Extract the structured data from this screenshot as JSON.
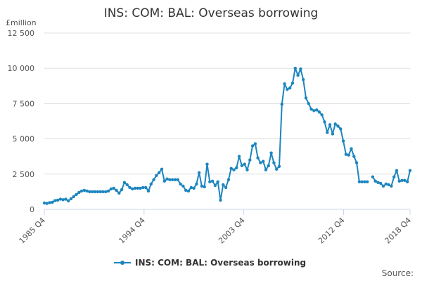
{
  "colors": {
    "series": "#1c85bf",
    "grid": "#e0e0e0",
    "text": "#333333"
  },
  "chart_data": {
    "type": "line",
    "title": "INS: COM: BAL: Overseas borrowing",
    "y_unit": "£million",
    "ylabel": "",
    "xlabel": "",
    "ylim": [
      0,
      12500
    ],
    "yticks": [
      0,
      2500,
      5000,
      7500,
      10000,
      12500
    ],
    "ytick_labels": [
      "0",
      "2 500",
      "5 000",
      "7 500",
      "10 000",
      "12 500"
    ],
    "xticks": [
      "1985 Q4",
      "1994 Q4",
      "2003 Q4",
      "2012 Q4",
      "2018 Q4"
    ],
    "x_start": "1985 Q4",
    "x_end": "2018 Q4",
    "grid": true,
    "legend_position": "bottom-center",
    "source_label": "Source:",
    "series": [
      {
        "name": "INS: COM: BAL: Overseas borrowing",
        "color": "#1c85bf",
        "values": [
          450,
          420,
          480,
          500,
          620,
          650,
          720,
          680,
          720,
          600,
          750,
          900,
          1050,
          1200,
          1300,
          1350,
          1300,
          1250,
          1250,
          1250,
          1250,
          1250,
          1250,
          1250,
          1300,
          1450,
          1500,
          1350,
          1150,
          1400,
          1900,
          1750,
          1550,
          1450,
          1500,
          1500,
          1500,
          1550,
          1550,
          1300,
          1800,
          2100,
          2400,
          2600,
          2850,
          2000,
          2150,
          2100,
          2100,
          2100,
          2100,
          1800,
          1650,
          1350,
          1300,
          1550,
          1500,
          1800,
          2600,
          1650,
          1600,
          3200,
          1950,
          2000,
          1700,
          1950,
          650,
          1750,
          1550,
          2100,
          2900,
          2800,
          2950,
          3750,
          3100,
          3200,
          2800,
          3500,
          4500,
          4650,
          3650,
          3300,
          3400,
          2800,
          3100,
          4000,
          3300,
          2850,
          3050,
          7450,
          8900,
          8500,
          8600,
          8950,
          10000,
          9500,
          9950,
          9200,
          7900,
          7500,
          7100,
          7000,
          7050,
          6900,
          6700,
          6200,
          5450,
          6000,
          5350,
          6050,
          5900,
          5700,
          4850,
          3900,
          3850,
          4300,
          3750,
          3300,
          1950,
          1950,
          1950,
          1950,
          null,
          2300,
          2000,
          1900,
          1850,
          1650,
          1800,
          1750,
          1650,
          2300,
          2750,
          2000,
          2050,
          2050,
          1950,
          2750
        ]
      }
    ]
  }
}
